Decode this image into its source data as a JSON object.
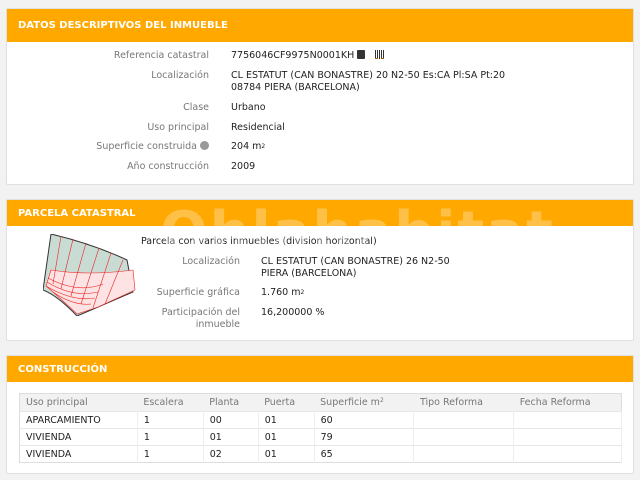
{
  "datos": {
    "title": "DATOS DESCRIPTIVOS DEL INMUEBLE",
    "referencia_label": "Referencia catastral",
    "referencia": "7756046CF9975N0001KH",
    "localizacion_label": "Localización",
    "localizacion_1": "CL ESTATUT (CAN BONASTRE) 20 N2-50 Es:CA Pl:SA Pt:20",
    "localizacion_2": "08784 PIERA (BARCELONA)",
    "clase_label": "Clase",
    "clase": "Urbano",
    "uso_label": "Uso principal",
    "uso": "Residencial",
    "superficie_label": "Superficie construida",
    "superficie": "204 m",
    "superficie_sup": "2",
    "anio_label": "Año construcción",
    "anio": "2009"
  },
  "parcela": {
    "title": "PARCELA CATASTRAL",
    "watermark": "Ohlahabitat",
    "descripcion": "Parcela con varios inmuebles (division horizontal)",
    "localizacion_label": "Localización",
    "localizacion_1": "CL ESTATUT (CAN BONASTRE) 26 N2-50",
    "localizacion_2": "PIERA (BARCELONA)",
    "superficie_label": "Superficie gráfica",
    "superficie": "1.760 m",
    "superficie_sup": "2",
    "participacion_label_1": "Participación del",
    "participacion_label_2": "inmueble",
    "participacion": "16,200000 %"
  },
  "construccion": {
    "title": "CONSTRUCCIÓN",
    "headers": [
      "Uso principal",
      "Escalera",
      "Planta",
      "Puerta",
      "Superficie m",
      "Tipo Reforma",
      "Fecha Reforma"
    ],
    "sup": "2",
    "rows": [
      [
        "APARCAMIENTO",
        "1",
        "00",
        "01",
        "60",
        "",
        ""
      ],
      [
        "VIVIENDA",
        "1",
        "01",
        "01",
        "79",
        "",
        ""
      ],
      [
        "VIVIENDA",
        "1",
        "02",
        "01",
        "65",
        "",
        ""
      ]
    ]
  },
  "colors": {
    "accent": "#ffa800"
  }
}
